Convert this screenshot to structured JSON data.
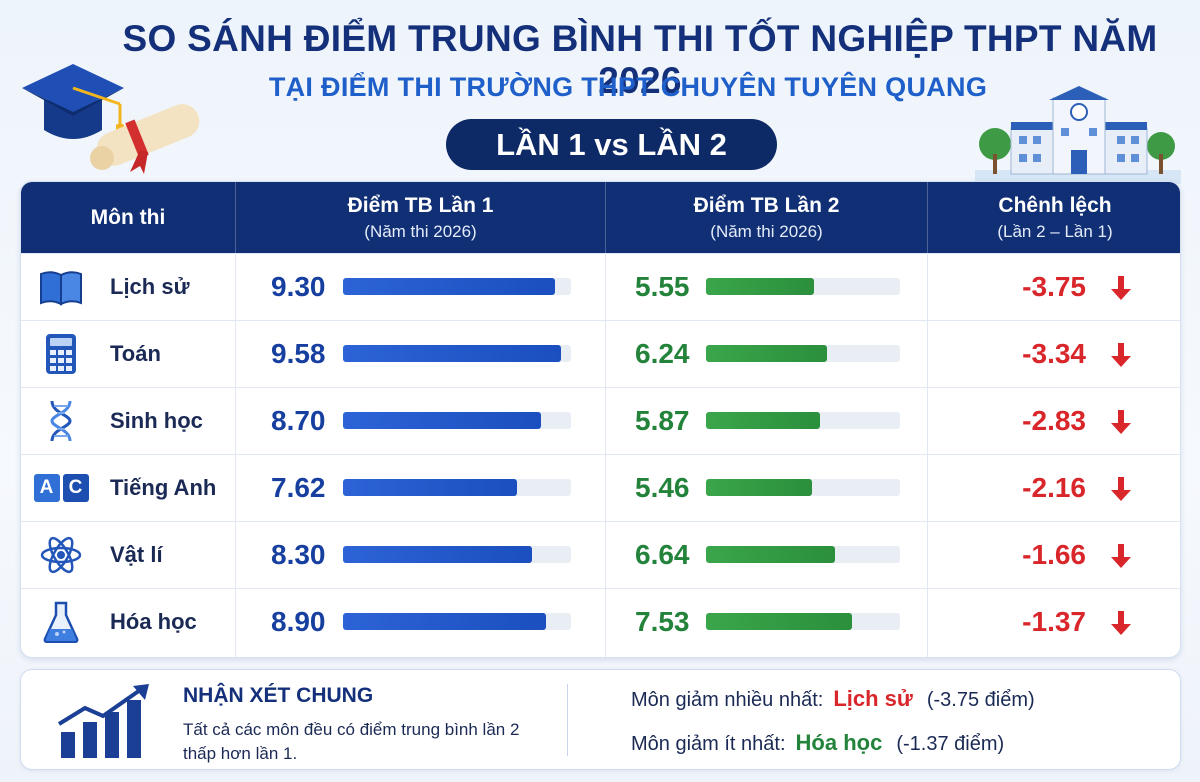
{
  "header": {
    "title": "SO SÁNH ĐIỂM TRUNG BÌNH THI TỐT NGHIỆP THPT NĂM 2026",
    "subtitle": "TẠI ĐIỂM THI TRƯỜNG THPT CHUYÊN TUYÊN QUANG",
    "pill": "LẦN 1 vs LẦN 2"
  },
  "table": {
    "headers": {
      "subject": "Môn thi",
      "round1_main": "Điểm TB Lần 1",
      "round1_sub": "(Năm thi 2026)",
      "round2_main": "Điểm TB Lần 2",
      "round2_sub": "(Năm thi 2026)",
      "diff_main": "Chênh lệch",
      "diff_sub": "(Lần 2 – Lần 1)"
    },
    "icon_ac_text": "A C"
  },
  "chart_data": {
    "type": "table",
    "columns": [
      "Môn thi",
      "Điểm TB Lần 1",
      "Điểm TB Lần 2",
      "Chênh lệch"
    ],
    "bar_scale_max": 10,
    "rows": [
      {
        "subject": "Lịch sử",
        "icon": "book-icon",
        "round1": "9.30",
        "round2": "5.55",
        "diff": "-3.75"
      },
      {
        "subject": "Toán",
        "icon": "calculator-icon",
        "round1": "9.58",
        "round2": "6.24",
        "diff": "-3.34"
      },
      {
        "subject": "Sinh học",
        "icon": "dna-icon",
        "round1": "8.70",
        "round2": "5.87",
        "diff": "-2.83"
      },
      {
        "subject": "Tiếng Anh",
        "icon": "ac-letters-icon",
        "round1": "7.62",
        "round2": "5.46",
        "diff": "-2.16"
      },
      {
        "subject": "Vật lí",
        "icon": "atom-icon",
        "round1": "8.30",
        "round2": "6.64",
        "diff": "-1.66"
      },
      {
        "subject": "Hóa học",
        "icon": "flask-icon",
        "round1": "8.90",
        "round2": "7.53",
        "diff": "-1.37"
      }
    ],
    "colors": {
      "round1": "#1f56c8",
      "round2": "#2f9a41",
      "diff": "#d9262a"
    }
  },
  "summary": {
    "title": "NHẬN XÉT CHUNG",
    "text": "Tất cả các môn đều có điểm trung bình lần 2 thấp hơn lần 1.",
    "most_label": "Môn giảm nhiều nhất:",
    "most_subject": "Lịch sử",
    "most_value": "(-3.75 điểm)",
    "least_label": "Môn giảm ít nhất:",
    "least_subject": "Hóa học",
    "least_value": "(-1.37 điểm)"
  }
}
